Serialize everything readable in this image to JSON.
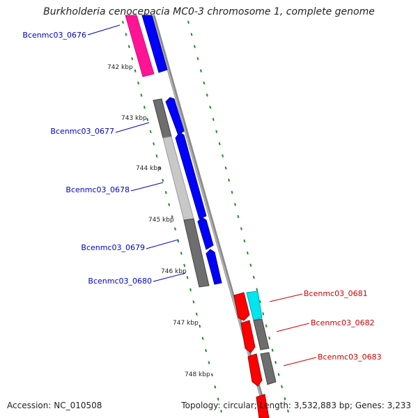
{
  "title": "Burkholderia cenocepacia MC0-3 chromosome 1, complete genome",
  "accession": "Accession: NC_010508",
  "topology": "Topology: circular; Length: 3,532,883 bp; Genes: 3,233",
  "colors": {
    "gene_label_left": "#0000cc",
    "gene_label_right": "#cc0000",
    "cds_forward": "#0000ff",
    "cds_reverse": "#ff0000",
    "rrna": "#ff1493",
    "trna": "#00e5ee",
    "gene_dark": "#6e6e6e",
    "gene_light": "#c8c8c8",
    "tick": "#228b22",
    "backbone": "#8a8a8a"
  },
  "ticks": [
    {
      "label": "742 kbp"
    },
    {
      "label": "743 kbp"
    },
    {
      "label": "744 kbp"
    },
    {
      "label": "745 kbp"
    },
    {
      "label": "746 kbp"
    },
    {
      "label": "747 kbp"
    },
    {
      "label": "748 kbp"
    }
  ],
  "genes": [
    {
      "label": "Bcenmc03_0676",
      "side": "left"
    },
    {
      "label": "Bcenmc03_0677",
      "side": "left"
    },
    {
      "label": "Bcenmc03_0678",
      "side": "left"
    },
    {
      "label": "Bcenmc03_0679",
      "side": "left"
    },
    {
      "label": "Bcenmc03_0680",
      "side": "left"
    },
    {
      "label": "Bcenmc03_0681",
      "side": "right"
    },
    {
      "label": "Bcenmc03_0682",
      "side": "right"
    },
    {
      "label": "Bcenmc03_0683",
      "side": "right"
    }
  ]
}
